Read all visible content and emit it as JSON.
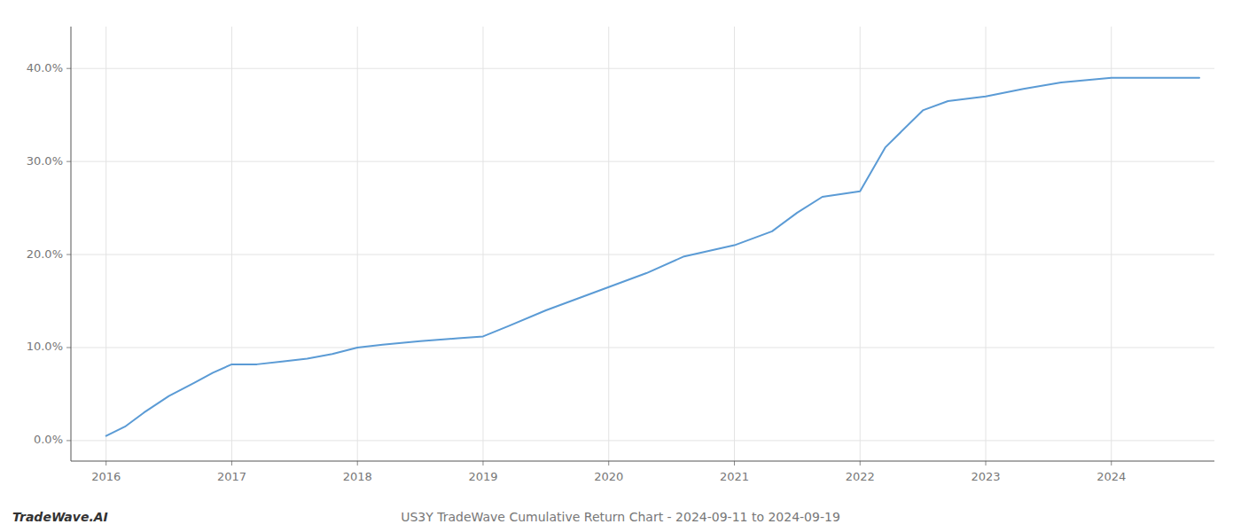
{
  "chart_data": {
    "type": "line",
    "title": "US3Y TradeWave Cumulative Return Chart - 2024-09-11 to 2024-09-19",
    "annotations": [
      "TradeWave.AI"
    ],
    "color": "#5b9bd5",
    "grid": true,
    "x": [
      2016.0,
      2016.15,
      2016.3,
      2016.5,
      2016.7,
      2016.85,
      2017.0,
      2017.2,
      2017.4,
      2017.6,
      2017.8,
      2018.0,
      2018.2,
      2018.5,
      2018.8,
      2019.0,
      2019.2,
      2019.5,
      2019.8,
      2020.0,
      2020.3,
      2020.6,
      2021.0,
      2021.3,
      2021.5,
      2021.7,
      2022.0,
      2022.2,
      2022.5,
      2022.7,
      2023.0,
      2023.3,
      2023.6,
      2024.0,
      2024.7
    ],
    "values": [
      0.005,
      0.015,
      0.03,
      0.048,
      0.062,
      0.073,
      0.082,
      0.082,
      0.085,
      0.088,
      0.093,
      0.1,
      0.103,
      0.107,
      0.11,
      0.112,
      0.123,
      0.14,
      0.155,
      0.165,
      0.18,
      0.198,
      0.21,
      0.225,
      0.245,
      0.262,
      0.268,
      0.315,
      0.355,
      0.365,
      0.37,
      0.378,
      0.385,
      0.39,
      0.39
    ],
    "xlim": [
      2015.72,
      2024.82
    ],
    "ylim": [
      -0.022,
      0.445
    ],
    "xticks": [
      2016,
      2017,
      2018,
      2019,
      2020,
      2021,
      2022,
      2023,
      2024
    ],
    "yticks": [
      {
        "value": 0.0,
        "label": "0.0%"
      },
      {
        "value": 0.1,
        "label": "10.0%"
      },
      {
        "value": 0.2,
        "label": "20.0%"
      },
      {
        "value": 0.3,
        "label": "30.0%"
      },
      {
        "value": 0.4,
        "label": "40.0%"
      }
    ]
  }
}
